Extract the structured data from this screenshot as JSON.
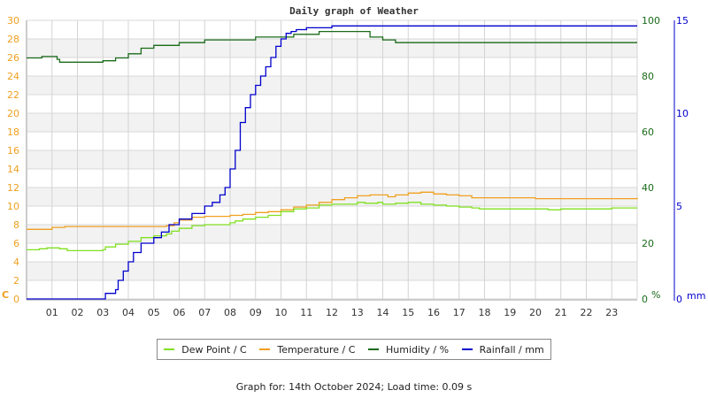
{
  "chart_data": {
    "type": "line",
    "title": "Daily graph of Weather",
    "xlabel": "",
    "x_ticks": [
      "01",
      "02",
      "03",
      "04",
      "05",
      "06",
      "07",
      "08",
      "09",
      "10",
      "11",
      "12",
      "13",
      "14",
      "15",
      "16",
      "17",
      "18",
      "19",
      "20",
      "21",
      "22",
      "23"
    ],
    "x_range_hours": [
      0,
      24
    ],
    "axes": {
      "left": {
        "unit": "C",
        "ticks": [
          0,
          2,
          4,
          6,
          8,
          10,
          12,
          14,
          16,
          18,
          20,
          22,
          24,
          26,
          28,
          30
        ],
        "range": [
          0,
          30
        ],
        "color": "#f0a020"
      },
      "right_humidity": {
        "unit": "%",
        "ticks": [
          0,
          20,
          40,
          60,
          80,
          100
        ],
        "range": [
          0,
          100
        ],
        "color": "#1a6b1a"
      },
      "right_rainfall": {
        "unit": "mm",
        "ticks": [
          0,
          5,
          10,
          15
        ],
        "range": [
          0,
          15
        ],
        "color": "#0000cc"
      }
    },
    "grid": true,
    "legend_position": "bottom",
    "series": [
      {
        "name": "Dew Point / C",
        "axis": "left",
        "color": "#80e020",
        "points": [
          [
            0,
            5.3
          ],
          [
            0.5,
            5.4
          ],
          [
            0.8,
            5.5
          ],
          [
            1.3,
            5.4
          ],
          [
            1.6,
            5.2
          ],
          [
            2.5,
            5.2
          ],
          [
            3.0,
            5.3
          ],
          [
            3.1,
            5.6
          ],
          [
            3.5,
            5.9
          ],
          [
            4.0,
            6.2
          ],
          [
            4.5,
            6.6
          ],
          [
            5.0,
            6.8
          ],
          [
            5.5,
            7.0
          ],
          [
            5.7,
            7.3
          ],
          [
            6.0,
            7.6
          ],
          [
            6.5,
            7.9
          ],
          [
            7.0,
            8.0
          ],
          [
            8.0,
            8.2
          ],
          [
            8.2,
            8.4
          ],
          [
            8.5,
            8.6
          ],
          [
            9.0,
            8.8
          ],
          [
            9.5,
            9.0
          ],
          [
            10.0,
            9.4
          ],
          [
            10.5,
            9.7
          ],
          [
            11.0,
            9.8
          ],
          [
            11.5,
            10.1
          ],
          [
            12.0,
            10.2
          ],
          [
            12.5,
            10.2
          ],
          [
            13.0,
            10.4
          ],
          [
            13.3,
            10.3
          ],
          [
            13.8,
            10.4
          ],
          [
            14.0,
            10.2
          ],
          [
            14.5,
            10.3
          ],
          [
            15.0,
            10.4
          ],
          [
            15.5,
            10.2
          ],
          [
            16.0,
            10.1
          ],
          [
            16.5,
            10.0
          ],
          [
            17.0,
            9.9
          ],
          [
            17.5,
            9.8
          ],
          [
            17.8,
            9.7
          ],
          [
            18.5,
            9.7
          ],
          [
            19.5,
            9.7
          ],
          [
            20.5,
            9.6
          ],
          [
            21.0,
            9.7
          ],
          [
            22.0,
            9.7
          ],
          [
            23.0,
            9.8
          ],
          [
            24.0,
            9.8
          ]
        ]
      },
      {
        "name": "Temperature / C",
        "axis": "left",
        "color": "#f0a020",
        "points": [
          [
            0,
            7.5
          ],
          [
            0.5,
            7.5
          ],
          [
            1.0,
            7.7
          ],
          [
            1.5,
            7.8
          ],
          [
            3.0,
            7.8
          ],
          [
            4.0,
            7.8
          ],
          [
            5.0,
            7.8
          ],
          [
            5.5,
            7.9
          ],
          [
            5.8,
            8.2
          ],
          [
            6.0,
            8.5
          ],
          [
            6.5,
            8.8
          ],
          [
            7.0,
            8.9
          ],
          [
            8.0,
            9.0
          ],
          [
            8.5,
            9.1
          ],
          [
            9.0,
            9.3
          ],
          [
            9.5,
            9.4
          ],
          [
            10.0,
            9.6
          ],
          [
            10.5,
            9.9
          ],
          [
            11.0,
            10.1
          ],
          [
            11.5,
            10.4
          ],
          [
            12.0,
            10.7
          ],
          [
            12.5,
            10.9
          ],
          [
            13.0,
            11.1
          ],
          [
            13.5,
            11.2
          ],
          [
            14.0,
            11.2
          ],
          [
            14.2,
            11.0
          ],
          [
            14.5,
            11.2
          ],
          [
            15.0,
            11.4
          ],
          [
            15.5,
            11.5
          ],
          [
            16.0,
            11.3
          ],
          [
            16.5,
            11.2
          ],
          [
            17.0,
            11.1
          ],
          [
            17.5,
            10.9
          ],
          [
            18.0,
            10.9
          ],
          [
            19.0,
            10.9
          ],
          [
            20.0,
            10.8
          ],
          [
            21.0,
            10.8
          ],
          [
            22.0,
            10.8
          ],
          [
            23.0,
            10.8
          ],
          [
            24.0,
            10.9
          ]
        ]
      },
      {
        "name": "Humidity / %",
        "axis": "right_humidity",
        "color": "#1a6b1a",
        "points": [
          [
            0,
            86.5
          ],
          [
            0.5,
            86.5
          ],
          [
            0.6,
            87
          ],
          [
            1.0,
            87
          ],
          [
            1.2,
            86
          ],
          [
            1.3,
            85
          ],
          [
            2.5,
            85
          ],
          [
            3.0,
            85.5
          ],
          [
            3.5,
            86.5
          ],
          [
            4.0,
            88
          ],
          [
            4.5,
            90
          ],
          [
            5.0,
            91
          ],
          [
            6.0,
            92
          ],
          [
            7.0,
            93
          ],
          [
            8.0,
            93
          ],
          [
            8.5,
            93
          ],
          [
            9.0,
            94
          ],
          [
            10.0,
            94
          ],
          [
            10.5,
            95
          ],
          [
            11.0,
            95
          ],
          [
            11.5,
            96
          ],
          [
            12.0,
            96
          ],
          [
            12.5,
            96
          ],
          [
            13.0,
            96
          ],
          [
            13.5,
            94
          ],
          [
            14.0,
            93
          ],
          [
            14.5,
            92
          ],
          [
            15.0,
            92
          ],
          [
            15.5,
            92
          ],
          [
            16.0,
            92
          ],
          [
            16.5,
            92
          ],
          [
            17.0,
            92
          ],
          [
            17.5,
            92
          ],
          [
            18.0,
            92
          ],
          [
            19.0,
            92
          ],
          [
            20.0,
            92
          ],
          [
            20.5,
            92
          ],
          [
            21.0,
            92
          ],
          [
            22.0,
            92
          ],
          [
            23.0,
            92
          ],
          [
            24.0,
            92
          ]
        ]
      },
      {
        "name": "Rainfall / mm",
        "axis": "right_rainfall",
        "color": "#0000cc",
        "points": [
          [
            0,
            0
          ],
          [
            3.0,
            0
          ],
          [
            3.1,
            0.3
          ],
          [
            3.5,
            0.5
          ],
          [
            3.6,
            1.0
          ],
          [
            3.8,
            1.5
          ],
          [
            4.0,
            2.0
          ],
          [
            4.2,
            2.5
          ],
          [
            4.5,
            3.0
          ],
          [
            5.0,
            3.3
          ],
          [
            5.3,
            3.6
          ],
          [
            5.6,
            4.0
          ],
          [
            6.0,
            4.3
          ],
          [
            6.5,
            4.6
          ],
          [
            7.0,
            5.0
          ],
          [
            7.3,
            5.2
          ],
          [
            7.6,
            5.6
          ],
          [
            7.8,
            6.0
          ],
          [
            8.0,
            7.0
          ],
          [
            8.2,
            8.0
          ],
          [
            8.4,
            9.5
          ],
          [
            8.6,
            10.3
          ],
          [
            8.8,
            11.0
          ],
          [
            9.0,
            11.5
          ],
          [
            9.2,
            12.0
          ],
          [
            9.4,
            12.5
          ],
          [
            9.6,
            13.0
          ],
          [
            9.8,
            13.6
          ],
          [
            10.0,
            14.0
          ],
          [
            10.2,
            14.3
          ],
          [
            10.4,
            14.4
          ],
          [
            10.6,
            14.5
          ],
          [
            11.0,
            14.6
          ],
          [
            12.0,
            14.7
          ],
          [
            24.0,
            14.7
          ]
        ]
      }
    ]
  },
  "header": {
    "title": "Daily graph of Weather"
  },
  "axes_labels": {
    "left_unit": "C",
    "humidity_unit": "%",
    "rainfall_unit": "mm"
  },
  "legend": {
    "items": [
      {
        "label": "Dew Point / C",
        "color": "#80e020"
      },
      {
        "label": "Temperature / C",
        "color": "#f0a020"
      },
      {
        "label": "Humidity / %",
        "color": "#1a6b1a"
      },
      {
        "label": "Rainfall / mm",
        "color": "#0000cc"
      }
    ]
  },
  "footer": {
    "text": "Graph for: 14th October 2024; Load time: 0.09 s"
  }
}
